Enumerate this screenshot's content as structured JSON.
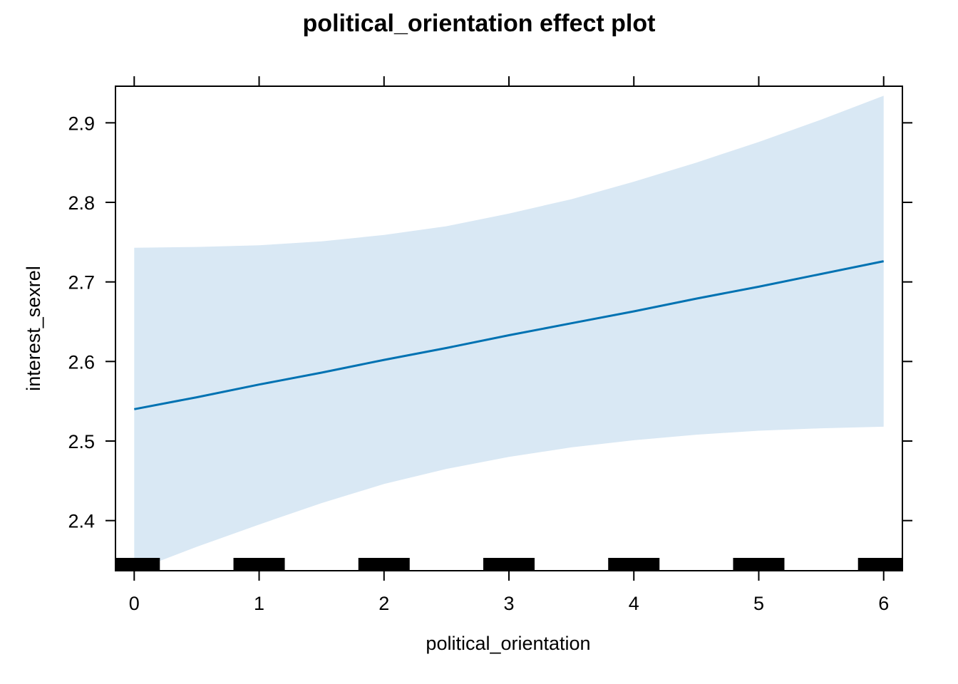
{
  "chart_data": {
    "type": "line",
    "title": "political_orientation effect plot",
    "xlabel": "political_orientation",
    "ylabel": "interest_sexrel",
    "xlim": [
      -0.15,
      6.15
    ],
    "ylim": [
      2.337,
      2.946
    ],
    "x_ticks": [
      0,
      1,
      2,
      3,
      4,
      5,
      6
    ],
    "x_tick_labels": [
      "0",
      "1",
      "2",
      "3",
      "4",
      "5",
      "6"
    ],
    "y_ticks": [
      2.4,
      2.5,
      2.6,
      2.7,
      2.8,
      2.9
    ],
    "y_tick_labels": [
      "2.4",
      "2.5",
      "2.6",
      "2.7",
      "2.8",
      "2.9"
    ],
    "grid": false,
    "series": [
      {
        "x": [
          0,
          0.5,
          1,
          1.5,
          2,
          2.5,
          3,
          3.5,
          4,
          4.5,
          5,
          5.5,
          6
        ],
        "fit": [
          2.54,
          2.555,
          2.571,
          2.586,
          2.602,
          2.617,
          2.633,
          2.648,
          2.663,
          2.679,
          2.694,
          2.71,
          2.726
        ],
        "lower": [
          2.337,
          2.367,
          2.395,
          2.422,
          2.446,
          2.465,
          2.48,
          2.492,
          2.501,
          2.508,
          2.513,
          2.516,
          2.518
        ],
        "upper": [
          2.743,
          2.744,
          2.746,
          2.751,
          2.759,
          2.77,
          2.786,
          2.804,
          2.826,
          2.85,
          2.876,
          2.904,
          2.934
        ]
      }
    ],
    "rug": [
      0,
      1,
      2,
      3,
      4,
      5,
      6
    ],
    "colors": {
      "line": "#0072b2",
      "band": "#d9e8f4",
      "rug": "#000000",
      "frame": "#000000"
    }
  }
}
